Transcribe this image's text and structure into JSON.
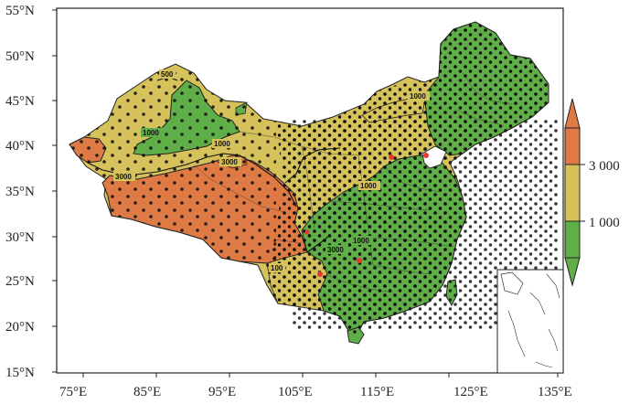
{
  "map": {
    "axes": {
      "lon_ticks": [
        "75°E",
        "85°E",
        "95°E",
        "105°E",
        "115°E",
        "125°E",
        "135°E"
      ],
      "lat_ticks": [
        "55°N",
        "50°N",
        "45°N",
        "40°N",
        "35°N",
        "30°N",
        "25°N",
        "20°N",
        "15°N"
      ]
    },
    "contour_labels": [
      {
        "id": "c500",
        "text": "500"
      },
      {
        "id": "c1000-west",
        "text": "1000"
      },
      {
        "id": "c1000-center",
        "text": "1000"
      },
      {
        "id": "c3000-tarim",
        "text": "3000"
      },
      {
        "id": "c3000-west",
        "text": "3000"
      },
      {
        "id": "c1000-north",
        "text": "1000"
      },
      {
        "id": "c1000-east",
        "text": "1000"
      },
      {
        "id": "c1000-sw",
        "text": "1000"
      },
      {
        "id": "c3000-sw",
        "text": "3000"
      },
      {
        "id": "c100-south",
        "text": "100"
      }
    ],
    "colorbar": {
      "labels": [
        "3 000",
        "1 000"
      ],
      "colors": {
        "high": "#e07a45",
        "mid": "#d6c25a",
        "low": "#5fae47"
      }
    },
    "station_color": "#111111",
    "highlight_color": "#e53935"
  }
}
